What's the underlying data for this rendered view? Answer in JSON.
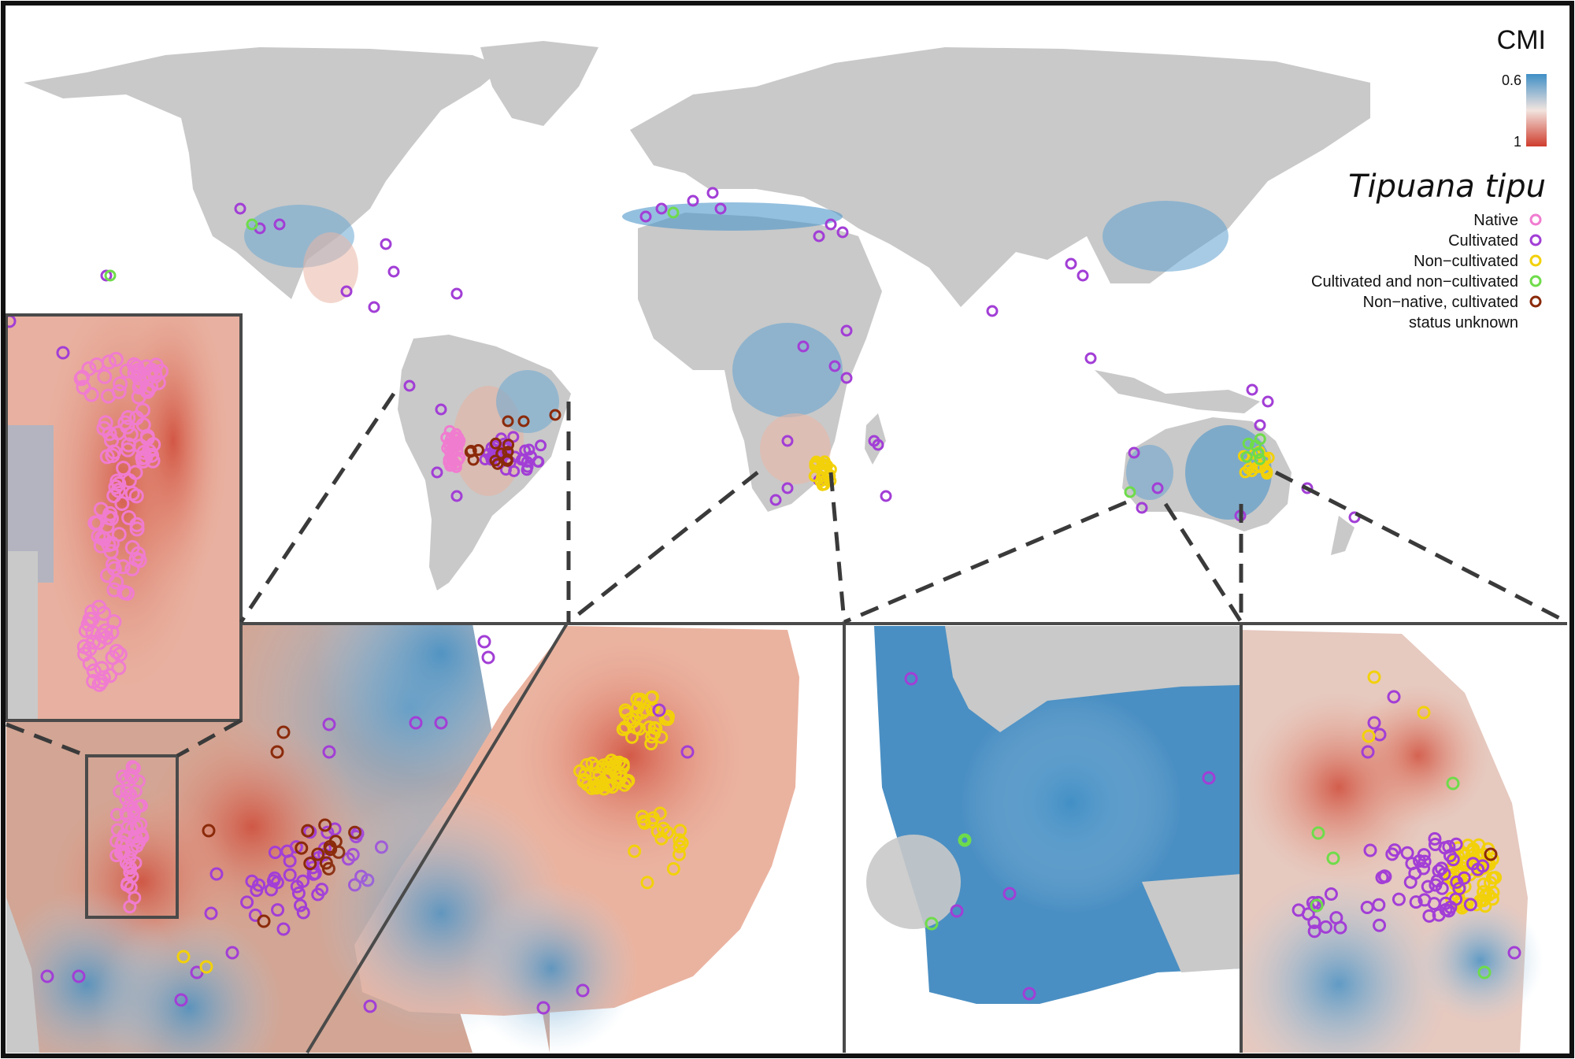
{
  "legend": {
    "cmi_title": "CMI",
    "scale_top_label": "0.6",
    "scale_bottom_label": "1",
    "species": "Tipuana tipu",
    "items": [
      {
        "label": "Native",
        "color": "#f07cd0"
      },
      {
        "label": "Cultivated",
        "color": "#a23ed6"
      },
      {
        "label": "Non−cultivated",
        "color": "#f2d10a"
      },
      {
        "label": "Cultivated and non−cultivated",
        "color": "#6edc4a"
      },
      {
        "label": "Non−native, cultivated",
        "color": "#8b2a0a",
        "continuation": "status unknown"
      }
    ]
  },
  "colors": {
    "land": "#c9c9c9",
    "cmi_low": "#3f8fc6",
    "cmi_mid": "#f2e4df",
    "cmi_high": "#cf3c2c",
    "frame": "#4a4a4a"
  },
  "panels": [
    {
      "name": "world-map",
      "region": "World"
    },
    {
      "name": "native-range-inset",
      "region": "Andes (native range)"
    },
    {
      "name": "south-america-zoom",
      "region": "South America"
    },
    {
      "name": "southern-africa-zoom",
      "region": "Southern Africa"
    },
    {
      "name": "western-australia-zoom",
      "region": "Western Australia"
    },
    {
      "name": "eastern-australia-zoom",
      "region": "Eastern Australia"
    }
  ]
}
